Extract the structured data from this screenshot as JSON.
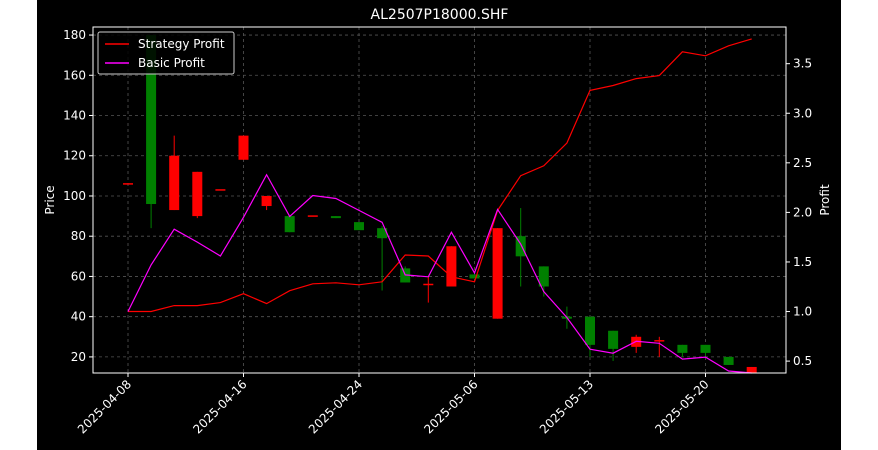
{
  "chart_data": {
    "type": "candlestick+line",
    "title": "AL2507P18000.SHF",
    "ylabel_left": "Price",
    "ylabel_right": "Profit",
    "ylim_left": [
      12,
      184
    ],
    "ylim_right": [
      0.38,
      3.87
    ],
    "yticks_left": [
      20,
      40,
      60,
      80,
      100,
      120,
      140,
      160,
      180
    ],
    "yticks_right": [
      0.5,
      1.0,
      1.5,
      2.0,
      2.5,
      3.0,
      3.5
    ],
    "yticks_right_labels": [
      "0.5",
      "1.0",
      "1.5",
      "2.0",
      "2.5",
      "3.0",
      "3.5"
    ],
    "xticks": [
      "2025-04-08",
      "2025-04-16",
      "2025-04-24",
      "2025-05-06",
      "2025-05-13",
      "2025-05-20"
    ],
    "xtick_index": [
      0,
      5,
      10,
      15,
      20,
      25
    ],
    "grid": true,
    "legend_position": "upper-left",
    "colors": {
      "up": "#ff0000",
      "down": "#008000",
      "strategy": "#ff0000",
      "basic": "#ff00ff",
      "text": "#ffffff",
      "background": "#000000"
    },
    "candles": [
      {
        "open": 106,
        "close": 106,
        "high": 106,
        "low": 106
      },
      {
        "open": 180,
        "close": 96,
        "high": 180,
        "low": 84
      },
      {
        "open": 93,
        "close": 120,
        "high": 130,
        "low": 93
      },
      {
        "open": 90,
        "close": 112,
        "high": 112,
        "low": 89
      },
      {
        "open": 103,
        "close": 103,
        "high": 103,
        "low": 103
      },
      {
        "open": 118,
        "close": 130,
        "high": 130,
        "low": 118
      },
      {
        "open": 95,
        "close": 100,
        "high": 100,
        "low": 93
      },
      {
        "open": 90,
        "close": 82,
        "high": 90,
        "low": 82
      },
      {
        "open": 90,
        "close": 90,
        "high": 90,
        "low": 90
      },
      {
        "open": 90,
        "close": 89,
        "high": 90,
        "low": 89
      },
      {
        "open": 87,
        "close": 83,
        "high": 87,
        "low": 83
      },
      {
        "open": 84,
        "close": 79,
        "high": 85,
        "low": 53
      },
      {
        "open": 64,
        "close": 57,
        "high": 65,
        "low": 57
      },
      {
        "open": 56,
        "close": 56,
        "high": 60,
        "low": 47
      },
      {
        "open": 55,
        "close": 75,
        "high": 75,
        "low": 55
      },
      {
        "open": 61,
        "close": 59,
        "high": 61,
        "low": 59
      },
      {
        "open": 39,
        "close": 84,
        "high": 84,
        "low": 39
      },
      {
        "open": 80,
        "close": 70,
        "high": 94,
        "low": 55
      },
      {
        "open": 65,
        "close": 55,
        "high": 65,
        "low": 50
      },
      {
        "open": 40,
        "close": 39,
        "high": 45,
        "low": 34
      },
      {
        "open": 40,
        "close": 26,
        "high": 40,
        "low": 20
      },
      {
        "open": 33,
        "close": 24,
        "high": 33,
        "low": 18
      },
      {
        "open": 25,
        "close": 30,
        "high": 31,
        "low": 22
      },
      {
        "open": 28,
        "close": 28,
        "high": 30,
        "low": 20
      },
      {
        "open": 26,
        "close": 22,
        "high": 26,
        "low": 20
      },
      {
        "open": 26,
        "close": 22,
        "high": 26,
        "low": 20
      },
      {
        "open": 20,
        "close": 16,
        "high": 20,
        "low": 16
      },
      {
        "open": 12,
        "close": 15,
        "high": 15,
        "low": 12
      }
    ],
    "series": [
      {
        "name": "Strategy Profit",
        "values": [
          1.0,
          1.0,
          1.06,
          1.06,
          1.09,
          1.18,
          1.08,
          1.21,
          1.28,
          1.29,
          1.27,
          1.3,
          1.57,
          1.56,
          1.35,
          1.3,
          2.02,
          2.37,
          2.47,
          2.7,
          3.23,
          3.28,
          3.35,
          3.38,
          3.62,
          3.58,
          3.68,
          3.75
        ]
      },
      {
        "name": "Basic Profit",
        "values": [
          1.0,
          1.47,
          1.83,
          1.7,
          1.56,
          1.95,
          2.38,
          1.96,
          2.17,
          2.14,
          2.02,
          1.9,
          1.37,
          1.35,
          1.8,
          1.39,
          2.03,
          1.68,
          1.2,
          0.94,
          0.62,
          0.58,
          0.7,
          0.68,
          0.52,
          0.54,
          0.4,
          0.38
        ]
      }
    ]
  }
}
